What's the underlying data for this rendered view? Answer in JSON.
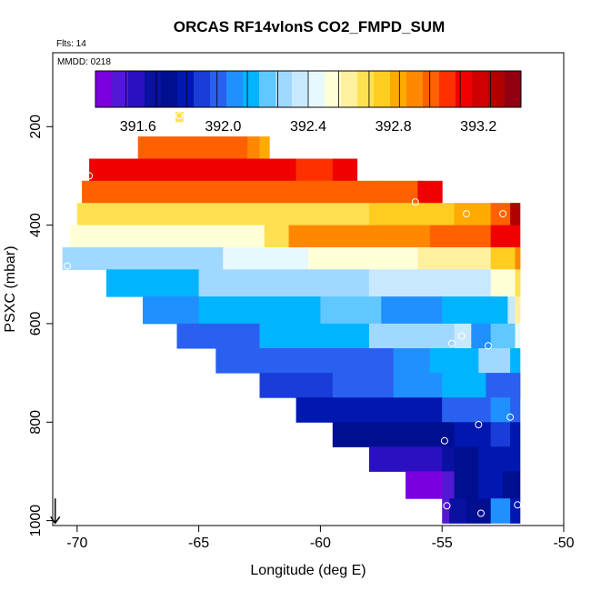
{
  "chart_data": {
    "type": "heatmap",
    "title": "ORCAS RF14vlonS CO2_FMPD_SUM",
    "notes": {
      "flights": "Flts: 14",
      "date": "MMDD: 0218"
    },
    "xlabel": "Longitude (deg E)",
    "ylabel": "PSXC (mbar)",
    "xlim": [
      -71.0,
      -50.0
    ],
    "ylim": [
      1010,
      50
    ],
    "y_inverted": true,
    "xticks": [
      -70,
      -65,
      -60,
      -55,
      -50
    ],
    "xtick_labels": [
      "-70",
      "-65",
      "-60",
      "-55",
      "-50"
    ],
    "yticks": [
      200,
      400,
      600,
      800,
      1000
    ],
    "ytick_labels": [
      "200",
      "400",
      "600",
      "800",
      "1000"
    ],
    "colorbar": {
      "min": 391.4,
      "max": 393.4,
      "ticks": [
        391.6,
        392.0,
        392.4,
        392.8,
        393.2
      ],
      "tick_labels": [
        "391.6",
        "392.0",
        "392.4",
        "392.8",
        "393.2"
      ],
      "colors": [
        "#7a00e0",
        "#5218d4",
        "#2a10c0",
        "#0a10a0",
        "#000f8f",
        "#0018b0",
        "#1a3cd8",
        "#2a60f0",
        "#2090ff",
        "#00b4ff",
        "#60c8ff",
        "#a0d8ff",
        "#c8e8ff",
        "#e8f8ff",
        "#ffffd8",
        "#fff0a0",
        "#ffe050",
        "#ffcc20",
        "#ffaa00",
        "#ff8800",
        "#ff6000",
        "#ff3000",
        "#f00000",
        "#d00000",
        "#b00000",
        "#900010"
      ]
    },
    "layers": [
      {
        "p_top": 170,
        "p_bot": 190,
        "x_start": -65.95,
        "x_end": -65.65,
        "segments": [
          [
            -65.95,
            392.7
          ]
        ]
      },
      {
        "p_top": 220,
        "p_bot": 265,
        "x_start": -67.5,
        "x_end": -62.1,
        "segments": [
          [
            -67.5,
            392.95
          ],
          [
            -63.0,
            392.9
          ],
          [
            -62.5,
            392.85
          ]
        ]
      },
      {
        "p_top": 265,
        "p_bot": 310,
        "x_start": -69.5,
        "x_end": -58.5,
        "segments": [
          [
            -69.5,
            393.15
          ],
          [
            -61.0,
            393.05
          ],
          [
            -59.5,
            393.1
          ]
        ]
      },
      {
        "p_top": 310,
        "p_bot": 355,
        "x_start": -69.8,
        "x_end": -55.0,
        "segments": [
          [
            -69.8,
            393.0
          ],
          [
            -57.5,
            393.0
          ],
          [
            -56.0,
            393.1
          ]
        ]
      },
      {
        "p_top": 355,
        "p_bot": 400,
        "x_start": -70.0,
        "x_end": -51.8,
        "segments": [
          [
            -70.0,
            392.7
          ],
          [
            -58.0,
            392.75
          ],
          [
            -54.5,
            392.85
          ],
          [
            -53.0,
            393.0
          ],
          [
            -52.2,
            393.25
          ]
        ]
      },
      {
        "p_top": 400,
        "p_bot": 445,
        "x_start": -70.3,
        "x_end": -51.8,
        "segments": [
          [
            -70.3,
            392.5
          ],
          [
            -65.0,
            392.55
          ],
          [
            -62.3,
            392.7
          ],
          [
            -61.3,
            392.9
          ],
          [
            -55.5,
            393.0
          ],
          [
            -53.0,
            393.1
          ]
        ]
      },
      {
        "p_top": 445,
        "p_bot": 490,
        "x_start": -70.6,
        "x_end": -51.8,
        "segments": [
          [
            -70.6,
            392.3
          ],
          [
            -64.0,
            392.4
          ],
          [
            -60.5,
            392.5
          ],
          [
            -56.0,
            392.6
          ],
          [
            -53.0,
            392.75
          ],
          [
            -52.0,
            392.9
          ]
        ]
      },
      {
        "p_top": 490,
        "p_bot": 545,
        "x_start": -68.8,
        "x_end": -51.8,
        "segments": [
          [
            -68.8,
            392.15
          ],
          [
            -65.0,
            392.25
          ],
          [
            -63.0,
            392.3
          ],
          [
            -58.0,
            392.35
          ],
          [
            -53.0,
            392.5
          ],
          [
            -52.0,
            392.7
          ]
        ]
      },
      {
        "p_top": 545,
        "p_bot": 600,
        "x_start": -67.3,
        "x_end": -51.8,
        "segments": [
          [
            -67.3,
            392.05
          ],
          [
            -65.0,
            392.15
          ],
          [
            -60.0,
            392.2
          ],
          [
            -57.5,
            392.05
          ],
          [
            -55.0,
            392.1
          ],
          [
            -52.3,
            392.35
          ],
          [
            -52.0,
            392.6
          ]
        ]
      },
      {
        "p_top": 600,
        "p_bot": 650,
        "x_start": -65.9,
        "x_end": -51.8,
        "segments": [
          [
            -65.9,
            392.0
          ],
          [
            -62.5,
            392.15
          ],
          [
            -58.0,
            392.3
          ],
          [
            -54.5,
            392.35
          ],
          [
            -53.8,
            392.05
          ],
          [
            -53.0,
            392.2
          ],
          [
            -52.0,
            392.4
          ]
        ]
      },
      {
        "p_top": 650,
        "p_bot": 700,
        "x_start": -64.3,
        "x_end": -51.8,
        "segments": [
          [
            -64.3,
            391.95
          ],
          [
            -60.0,
            392.0
          ],
          [
            -57.0,
            392.05
          ],
          [
            -55.5,
            392.1
          ],
          [
            -53.5,
            392.25
          ],
          [
            -52.2,
            392.15
          ]
        ]
      },
      {
        "p_top": 700,
        "p_bot": 750,
        "x_start": -62.5,
        "x_end": -51.8,
        "segments": [
          [
            -62.5,
            391.9
          ],
          [
            -59.5,
            391.95
          ],
          [
            -57.0,
            392.05
          ],
          [
            -55.0,
            392.15
          ],
          [
            -53.2,
            392.0
          ],
          [
            -52.4,
            391.95
          ]
        ]
      },
      {
        "p_top": 750,
        "p_bot": 800,
        "x_start": -61.0,
        "x_end": -51.8,
        "segments": [
          [
            -61.0,
            391.8
          ],
          [
            -57.0,
            391.85
          ],
          [
            -55.0,
            391.95
          ],
          [
            -53.0,
            392.05
          ],
          [
            -52.2,
            391.95
          ]
        ]
      },
      {
        "p_top": 800,
        "p_bot": 850,
        "x_start": -59.5,
        "x_end": -51.8,
        "segments": [
          [
            -59.5,
            391.72
          ],
          [
            -56.0,
            391.75
          ],
          [
            -54.5,
            391.85
          ],
          [
            -53.0,
            391.9
          ],
          [
            -52.2,
            391.8
          ]
        ]
      },
      {
        "p_top": 850,
        "p_bot": 900,
        "x_start": -58.0,
        "x_end": -51.8,
        "segments": [
          [
            -58.0,
            391.62
          ],
          [
            -55.0,
            391.68
          ],
          [
            -54.5,
            391.72
          ],
          [
            -53.5,
            391.8
          ],
          [
            -52.3,
            391.85
          ]
        ]
      },
      {
        "p_top": 900,
        "p_bot": 955,
        "x_start": -56.5,
        "x_end": -51.8,
        "segments": [
          [
            -56.5,
            391.45
          ],
          [
            -55.0,
            391.55
          ],
          [
            -54.5,
            391.72
          ],
          [
            -53.5,
            391.85
          ],
          [
            -52.5,
            391.75
          ]
        ]
      },
      {
        "p_top": 955,
        "p_bot": 1005,
        "x_start": -55.0,
        "x_end": -51.8,
        "segments": [
          [
            -55.0,
            391.48
          ],
          [
            -54.7,
            391.65
          ],
          [
            -54.0,
            391.75
          ],
          [
            -53.0,
            392.05
          ],
          [
            -52.2,
            391.85
          ]
        ]
      }
    ],
    "points": [
      {
        "x": -65.8,
        "y": 178
      },
      {
        "x": -69.5,
        "y": 300
      },
      {
        "x": -56.1,
        "y": 353
      },
      {
        "x": -54.0,
        "y": 377
      },
      {
        "x": -52.5,
        "y": 377
      },
      {
        "x": -51.6,
        "y": 380
      },
      {
        "x": -70.4,
        "y": 483
      },
      {
        "x": -54.2,
        "y": 625
      },
      {
        "x": -54.6,
        "y": 640
      },
      {
        "x": -53.1,
        "y": 645
      },
      {
        "x": -53.5,
        "y": 805
      },
      {
        "x": -52.2,
        "y": 790
      },
      {
        "x": -54.9,
        "y": 838
      },
      {
        "x": -54.8,
        "y": 970
      },
      {
        "x": -53.4,
        "y": 985
      },
      {
        "x": -51.9,
        "y": 968
      }
    ],
    "arrow": {
      "x": -70.9,
      "p_from": 955,
      "p_to": 1005
    }
  }
}
